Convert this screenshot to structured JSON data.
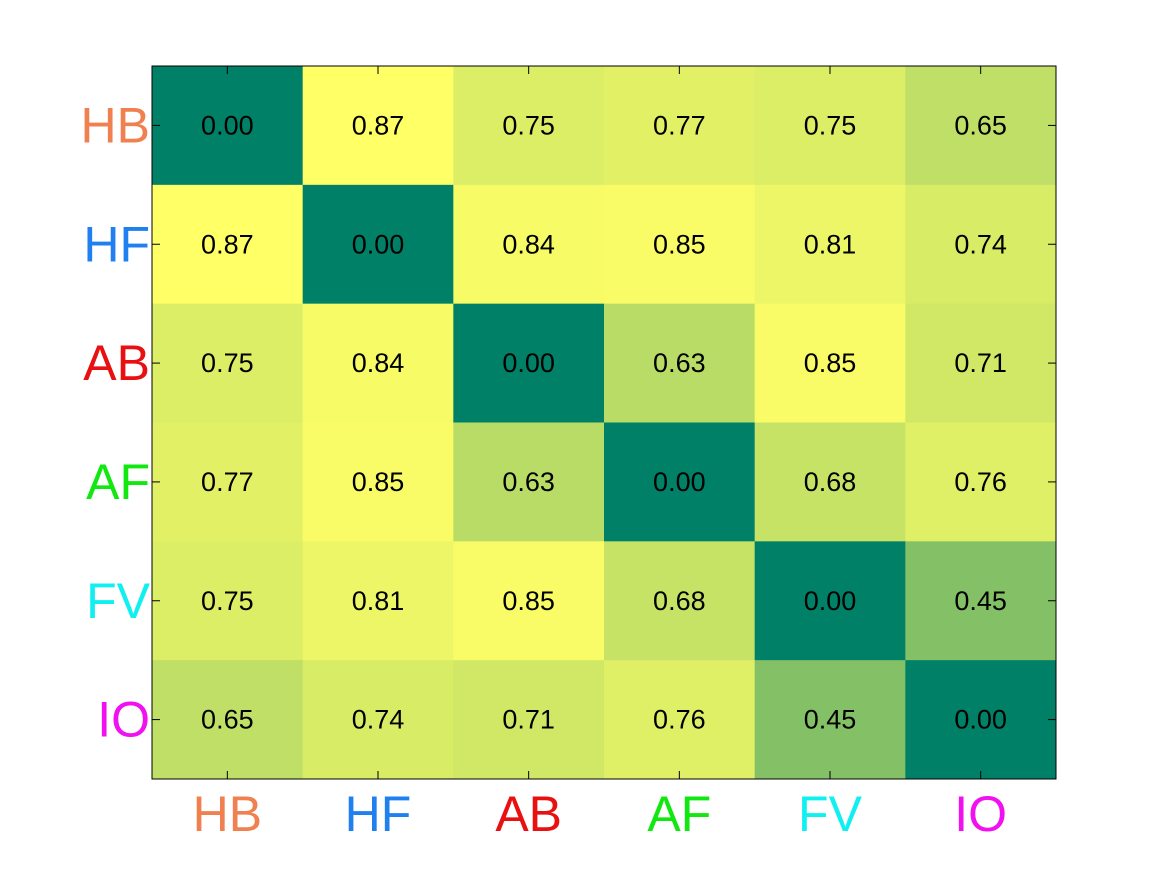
{
  "chart_data": {
    "type": "heatmap",
    "x_labels": [
      "HB",
      "HF",
      "AB",
      "AF",
      "FV",
      "IO"
    ],
    "y_labels": [
      "HB",
      "HF",
      "AB",
      "AF",
      "FV",
      "IO"
    ],
    "label_colors": [
      "#f08050",
      "#2080f0",
      "#e81010",
      "#10e810",
      "#10f0f0",
      "#f010f0"
    ],
    "values": [
      [
        0.0,
        0.87,
        0.75,
        0.77,
        0.75,
        0.65
      ],
      [
        0.87,
        0.0,
        0.84,
        0.85,
        0.81,
        0.74
      ],
      [
        0.75,
        0.84,
        0.0,
        0.63,
        0.85,
        0.71
      ],
      [
        0.77,
        0.85,
        0.63,
        0.0,
        0.68,
        0.76
      ],
      [
        0.75,
        0.81,
        0.85,
        0.68,
        0.0,
        0.45
      ],
      [
        0.65,
        0.74,
        0.71,
        0.76,
        0.45,
        0.0
      ]
    ],
    "colormap": "summer",
    "value_format": "0.00",
    "title": "",
    "xlabel": "",
    "ylabel": ""
  }
}
